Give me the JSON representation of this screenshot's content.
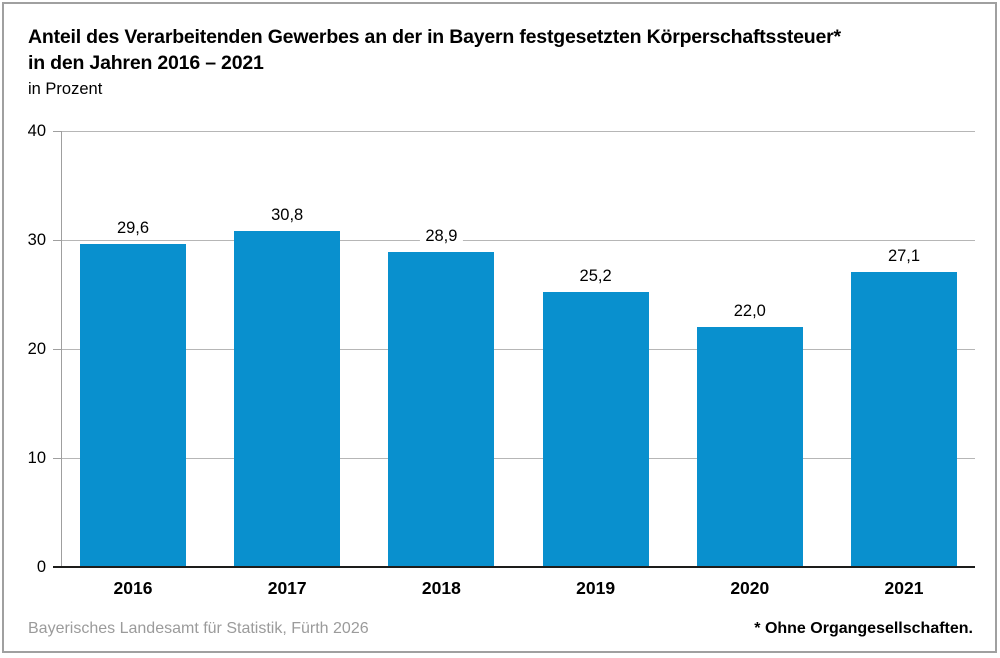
{
  "header": {
    "title_line1": "Anteil des Verarbeitenden Gewerbes an der in Bayern festgesetzten Körperschaftssteuer*",
    "title_line2": "in den Jahren 2016 – 2021",
    "subtitle": "in Prozent"
  },
  "chart_data": {
    "type": "bar",
    "title": "Anteil des Verarbeitenden Gewerbes an der in Bayern festgesetzten Körperschaftssteuer* in den Jahren 2016 – 2021",
    "subtitle": "in Prozent",
    "categories": [
      "2016",
      "2017",
      "2018",
      "2019",
      "2020",
      "2021"
    ],
    "values": [
      29.6,
      30.8,
      28.9,
      25.2,
      22.0,
      27.1
    ],
    "value_labels": [
      "29,6",
      "30,8",
      "28,9",
      "25,2",
      "22,0",
      "27,1"
    ],
    "xlabel": "",
    "ylabel": "in Prozent",
    "ylim": [
      0,
      40
    ],
    "yticks": [
      0,
      10,
      20,
      30,
      40
    ],
    "grid": true,
    "legend_position": "none",
    "bar_color": "#0990ce"
  },
  "footer": {
    "source": "Bayerisches Landesamt für Statistik, Fürth 2026",
    "footnote": "* Ohne Organgesellschaften."
  },
  "colors": {
    "bar": "#0990ce",
    "gridline": "#b6b6b6",
    "axis": "#9f9f9f",
    "baseline": "#1d1d1b",
    "frame_border": "#a0a0a0",
    "source_text": "#9b9b9b",
    "title_text": "#000000",
    "background": "#ffffff"
  }
}
